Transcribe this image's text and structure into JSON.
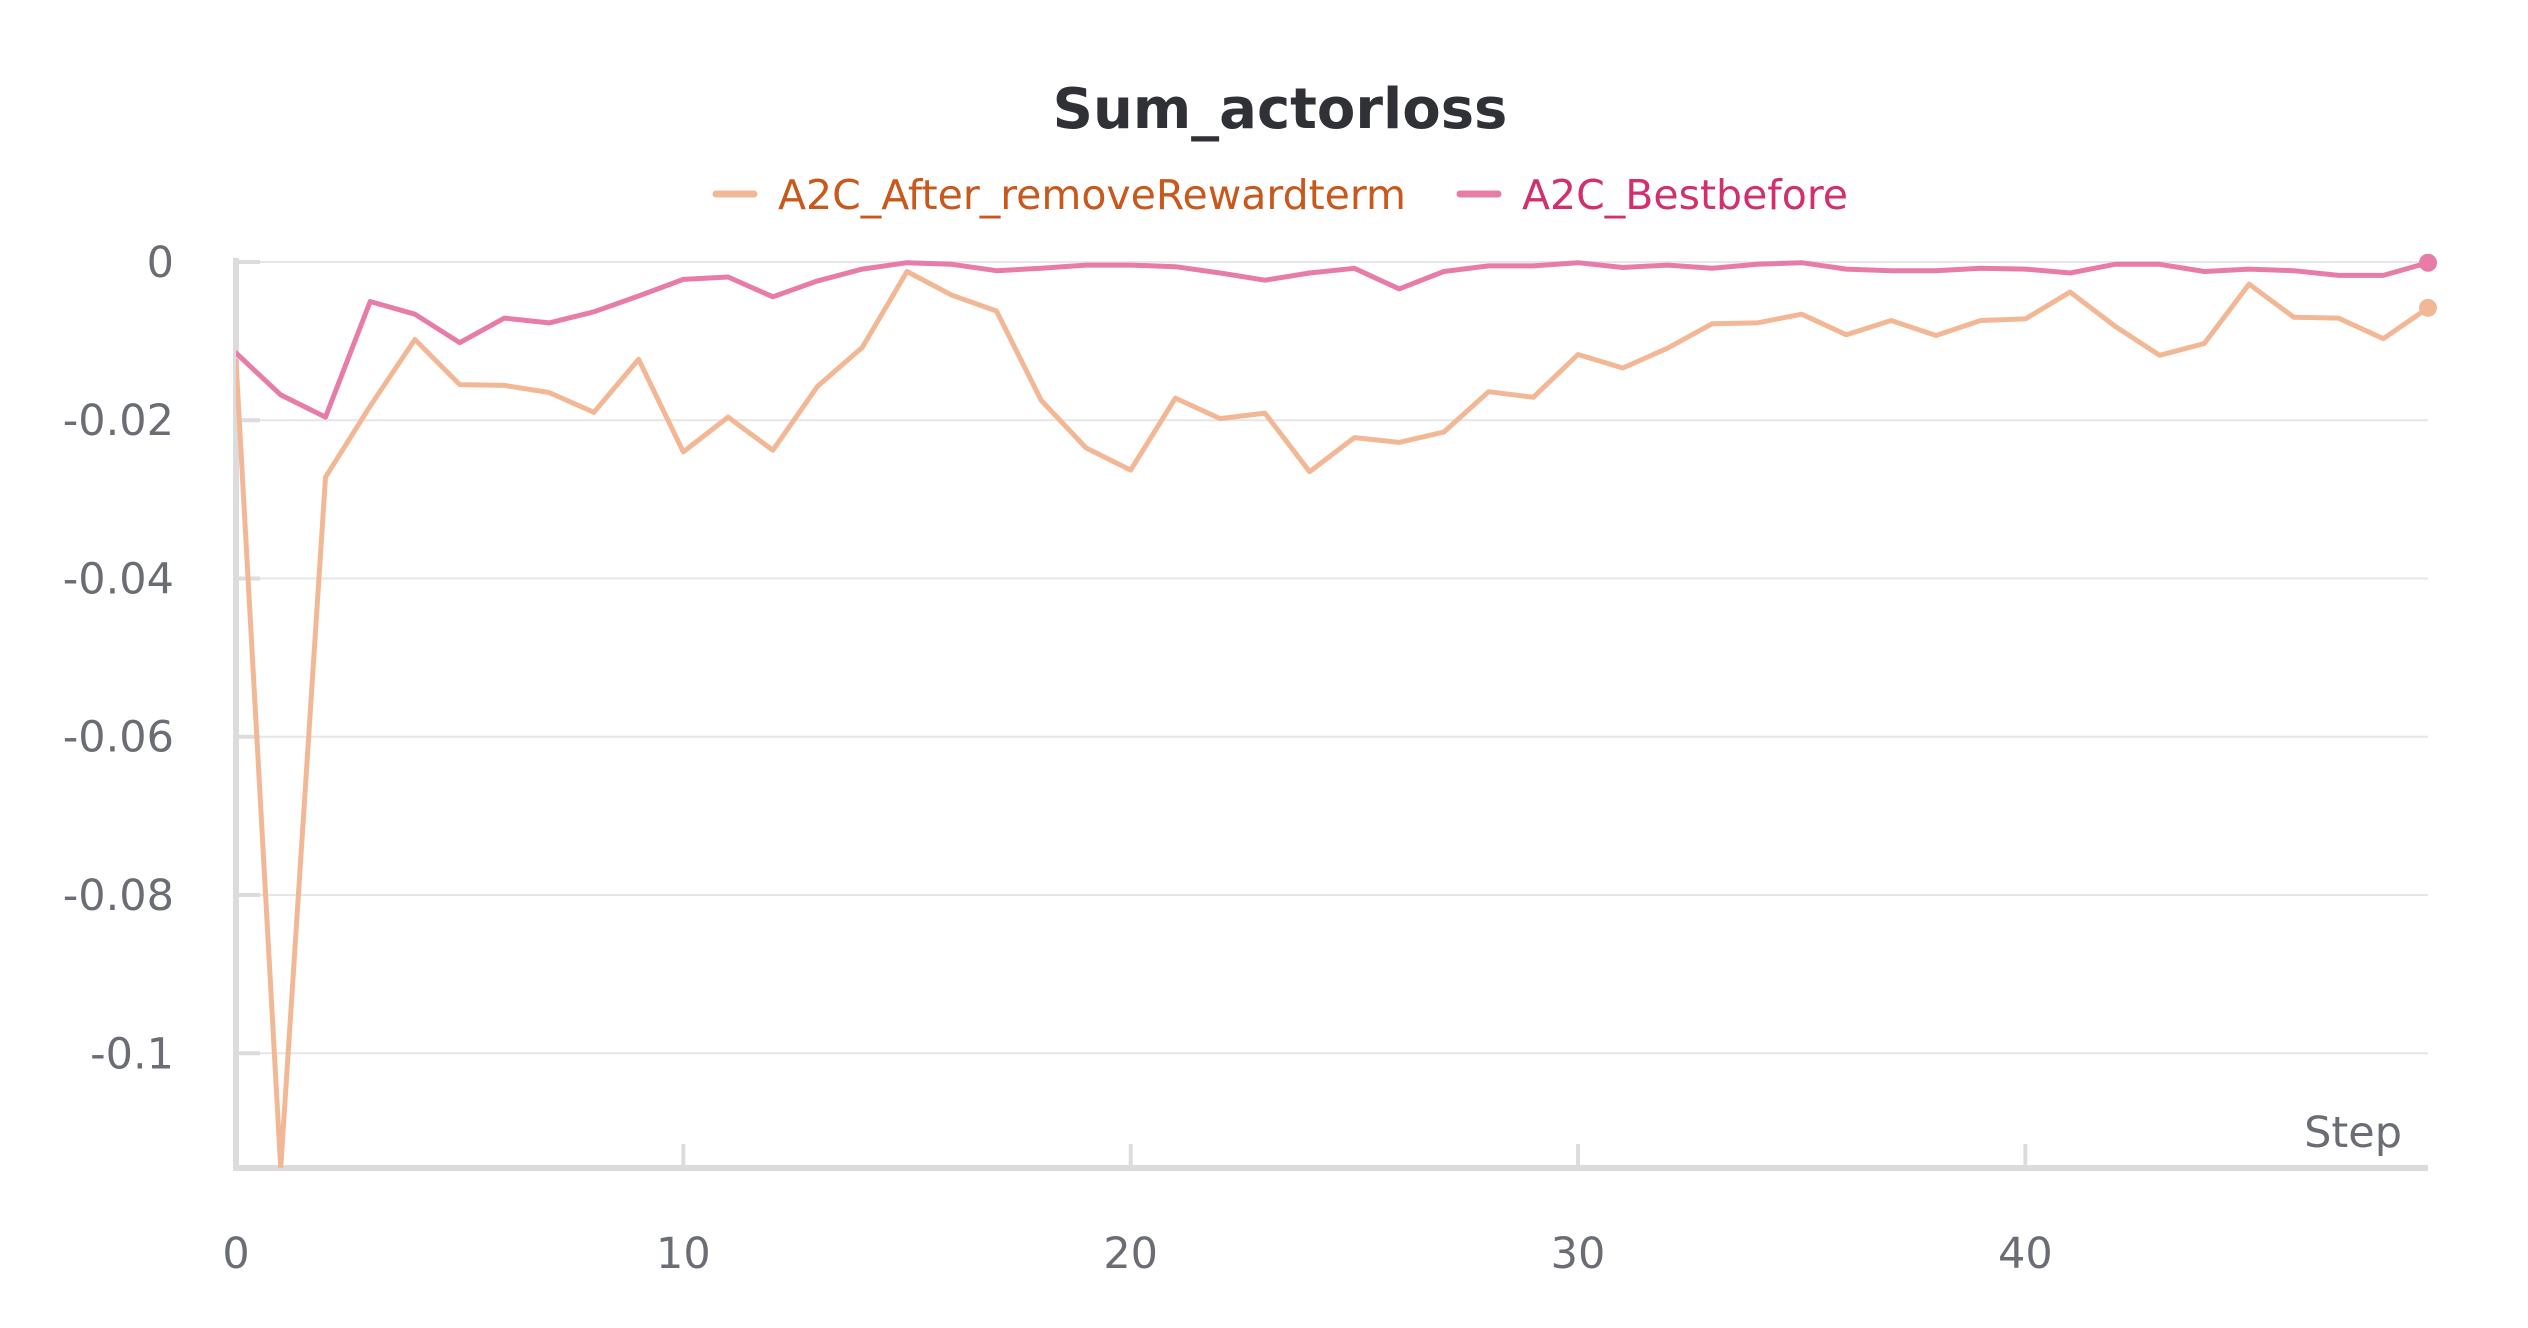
{
  "chart_data": {
    "type": "line",
    "title": "Sum_actorloss",
    "xlabel": "Step",
    "ylabel": "",
    "xlim": [
      0,
      49
    ],
    "ylim": [
      -0.1145,
      0.0005
    ],
    "x_ticks": [
      0,
      10,
      20,
      30,
      40
    ],
    "y_ticks": [
      0,
      -0.02,
      -0.04,
      -0.06,
      -0.08,
      -0.1
    ],
    "y_tick_labels": [
      "0",
      "-0.02",
      "-0.04",
      "-0.06",
      "-0.08",
      "-0.1"
    ],
    "x_tick_labels": [
      "0",
      "10",
      "20",
      "30",
      "40"
    ],
    "grid": true,
    "legend_position": "top",
    "x": [
      0,
      1,
      2,
      3,
      4,
      5,
      6,
      7,
      8,
      9,
      10,
      11,
      12,
      13,
      14,
      15,
      16,
      17,
      18,
      19,
      20,
      21,
      22,
      23,
      24,
      25,
      26,
      27,
      28,
      29,
      30,
      31,
      32,
      33,
      34,
      35,
      36,
      37,
      38,
      39,
      40,
      41,
      42,
      43,
      44,
      45,
      46,
      47,
      48,
      49
    ],
    "series": [
      {
        "name": "A2C_After_removeRewardterm",
        "color": "#f2b896",
        "legend_text_color": "#c8581c",
        "values": [
          -0.0125,
          -0.1145,
          -0.0272,
          -0.0182,
          -0.0098,
          -0.0155,
          -0.0156,
          -0.0165,
          -0.019,
          -0.0123,
          -0.024,
          -0.0196,
          -0.0238,
          -0.0157,
          -0.0108,
          -0.0012,
          -0.0042,
          -0.0062,
          -0.0175,
          -0.0235,
          -0.0263,
          -0.0172,
          -0.0198,
          -0.0191,
          -0.0265,
          -0.0222,
          -0.0228,
          -0.0215,
          -0.0164,
          -0.0171,
          -0.0117,
          -0.0134,
          -0.0109,
          -0.0078,
          -0.0077,
          -0.0066,
          -0.0092,
          -0.0074,
          -0.0093,
          -0.0074,
          -0.0072,
          -0.0038,
          -0.0081,
          -0.0118,
          -0.0103,
          -0.0028,
          -0.007,
          -0.0071,
          -0.0097,
          -0.0058
        ]
      },
      {
        "name": "A2C_Bestbefore",
        "color": "#e87ca8",
        "legend_text_color": "#d12f6e",
        "values": [
          -0.0115,
          -0.0168,
          -0.0196,
          -0.005,
          -0.0066,
          -0.0102,
          -0.0071,
          -0.0077,
          -0.0063,
          -0.0043,
          -0.0022,
          -0.0019,
          -0.0044,
          -0.0024,
          -0.0009,
          -0.0001,
          -0.0003,
          -0.0011,
          -0.0008,
          -0.0004,
          -0.0004,
          -0.0006,
          -0.0014,
          -0.0023,
          -0.0014,
          -0.0008,
          -0.0034,
          -0.0012,
          -0.0005,
          -0.0005,
          -0.0001,
          -0.0007,
          -0.0004,
          -0.0008,
          -0.0003,
          -0.0001,
          -0.0009,
          -0.0011,
          -0.0011,
          -0.0008,
          -0.0009,
          -0.0014,
          -0.0003,
          -0.0003,
          -0.0012,
          -0.0009,
          -0.0011,
          -0.0017,
          -0.0017,
          -0.0001
        ]
      }
    ]
  }
}
